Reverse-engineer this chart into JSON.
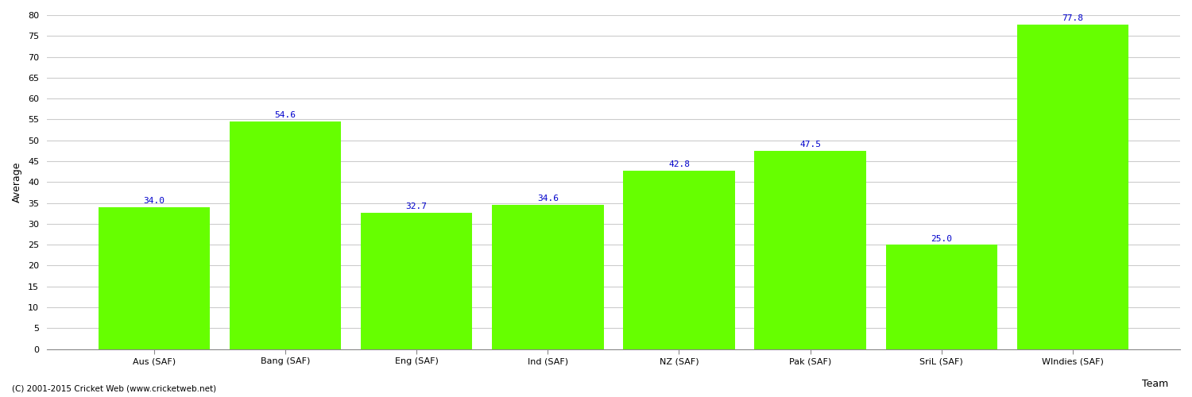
{
  "categories": [
    "Aus (SAF)",
    "Bang (SAF)",
    "Eng (SAF)",
    "Ind (SAF)",
    "NZ (SAF)",
    "Pak (SAF)",
    "SriL (SAF)",
    "WIndies (SAF)"
  ],
  "values": [
    34.0,
    54.6,
    32.7,
    34.6,
    42.8,
    47.5,
    25.0,
    77.8
  ],
  "bar_color": "#66FF00",
  "bar_edge_color": "#AAFFAA",
  "label_color": "#0000CC",
  "ylabel": "Average",
  "xlabel": "Team",
  "ylim": [
    0,
    80
  ],
  "yticks": [
    0,
    5,
    10,
    15,
    20,
    25,
    30,
    35,
    40,
    45,
    50,
    55,
    60,
    65,
    70,
    75,
    80
  ],
  "grid_color": "#CCCCCC",
  "bg_color": "#FFFFFF",
  "label_fontsize": 8,
  "axis_fontsize": 9,
  "tick_fontsize": 8,
  "footer": "(C) 2001-2015 Cricket Web (www.cricketweb.net)"
}
